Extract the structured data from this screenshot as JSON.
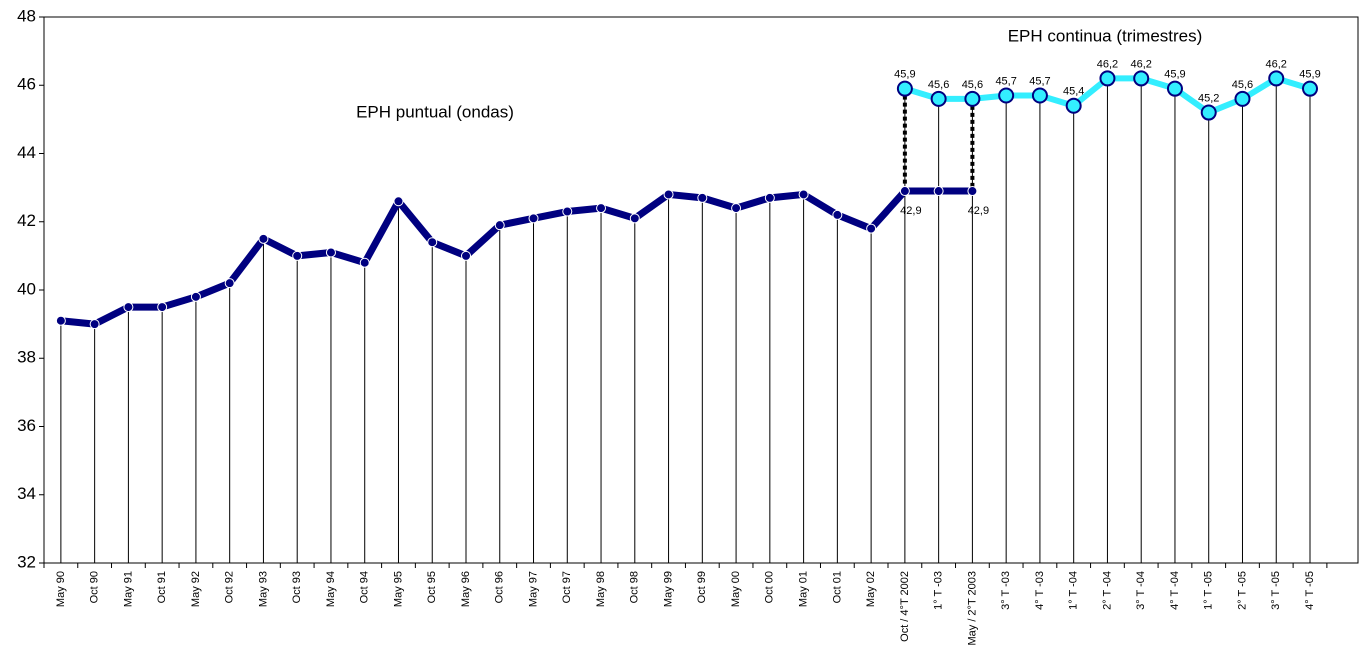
{
  "chart_data": {
    "type": "line",
    "annotations": [
      "EPH puntual (ondas)",
      "EPH continua (trimestres)"
    ],
    "categories": [
      "May 90",
      "Oct 90",
      "May 91",
      "Oct 91",
      "May 92",
      "Oct 92",
      "May 93",
      "Oct 93",
      "May 94",
      "Oct 94",
      "May 95",
      "Oct 95",
      "May 96",
      "Oct 96",
      "May 97",
      "Oct 97",
      "May 98",
      "Oct 98",
      "May 99",
      "Oct 99",
      "May 00",
      "Oct 00",
      "May 01",
      "Oct 01",
      "May 02",
      "Oct / 4°T 2002",
      "1° T -03",
      "May / 2°T 2003",
      "3° T -03",
      "4° T -03",
      "1° T -04",
      "2° T -04",
      "3° T -04",
      "4° T -04",
      "1° T -05",
      "2° T -05",
      "3° T -05",
      "4° T -05"
    ],
    "series": [
      {
        "color": "#000080",
        "values": [
          39.1,
          39.0,
          39.5,
          39.5,
          39.8,
          40.2,
          41.5,
          41.0,
          41.1,
          40.8,
          42.6,
          41.4,
          41.0,
          41.9,
          42.1,
          42.3,
          42.4,
          42.1,
          42.8,
          42.7,
          42.4,
          42.7,
          42.8,
          42.2,
          41.8,
          42.9,
          42.9,
          42.9,
          null,
          null,
          null,
          null,
          null,
          null,
          null,
          null,
          null,
          null
        ],
        "value_labels": [
          null,
          null,
          null,
          null,
          null,
          null,
          null,
          null,
          null,
          null,
          null,
          null,
          null,
          null,
          null,
          null,
          null,
          null,
          null,
          null,
          null,
          null,
          null,
          null,
          null,
          "42,9",
          null,
          "42,9",
          null,
          null,
          null,
          null,
          null,
          null,
          null,
          null,
          null,
          null
        ]
      },
      {
        "color": "#33eeff",
        "values": [
          null,
          null,
          null,
          null,
          null,
          null,
          null,
          null,
          null,
          null,
          null,
          null,
          null,
          null,
          null,
          null,
          null,
          null,
          null,
          null,
          null,
          null,
          null,
          null,
          null,
          45.9,
          45.6,
          45.6,
          45.7,
          45.7,
          45.4,
          46.2,
          46.2,
          45.9,
          45.2,
          45.6,
          46.2,
          45.9
        ],
        "value_labels": [
          null,
          null,
          null,
          null,
          null,
          null,
          null,
          null,
          null,
          null,
          null,
          null,
          null,
          null,
          null,
          null,
          null,
          null,
          null,
          null,
          null,
          null,
          null,
          null,
          null,
          "45,9",
          "45,6",
          "45,6",
          "45,7",
          "45,7",
          "45,4",
          "46,2",
          "46,2",
          "45,9",
          "45,2",
          "45,6",
          "46,2",
          "45,9"
        ]
      }
    ],
    "ylim": [
      32,
      48
    ],
    "yticks": [
      32,
      34,
      36,
      38,
      40,
      42,
      44,
      46,
      48
    ]
  }
}
